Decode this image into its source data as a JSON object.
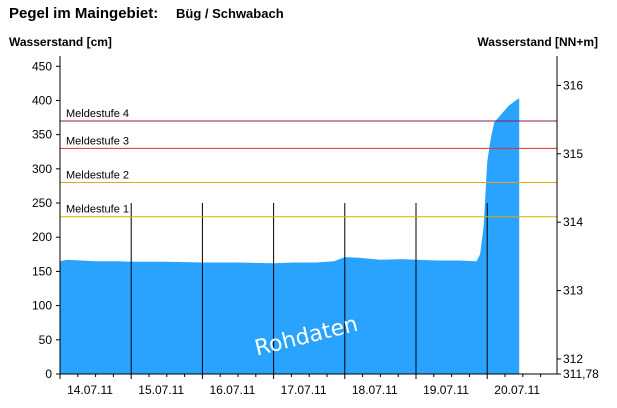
{
  "header": {
    "prefix": "Pegel im Maingebiet:",
    "station": "Büg / Schwabach"
  },
  "chart_data": {
    "type": "area",
    "ylabel_left": "Wasserstand [cm]",
    "ylabel_right": "Wasserstand [NN+m]",
    "watermark": "Rohdaten",
    "ylim": [
      0,
      465
    ],
    "yticks_left": [
      "0",
      "50",
      "100",
      "150",
      "200",
      "250",
      "300",
      "350",
      "400",
      "450"
    ],
    "right_axis": {
      "ticks": [
        "311,78",
        "312",
        "313",
        "314",
        "315",
        "316"
      ],
      "ticks_num": [
        311.78,
        312,
        313,
        314,
        315,
        316
      ],
      "offset_m": 311.78
    },
    "xticks": [
      "14.07.11",
      "15.07.11",
      "16.07.11",
      "17.07.11",
      "18.07.11",
      "19.07.11",
      "20.07.11"
    ],
    "series": [
      {
        "x": [
          0,
          0.1,
          0.3,
          0.5,
          0.8,
          1.0,
          1.5,
          2.0,
          2.5,
          3.0,
          3.3,
          3.6,
          3.85,
          4.0,
          4.2,
          4.5,
          4.8,
          5.0,
          5.3,
          5.6,
          5.85,
          5.9,
          5.95,
          6.0,
          6.05,
          6.1,
          6.2,
          6.3,
          6.4,
          6.45
        ],
        "values": [
          165,
          167,
          166,
          165,
          165,
          164,
          164,
          163,
          163,
          162,
          163,
          163,
          165,
          171,
          170,
          167,
          168,
          167,
          166,
          166,
          165,
          175,
          215,
          310,
          345,
          368,
          380,
          392,
          400,
          403
        ]
      }
    ],
    "thresholds": [
      {
        "label": "Meldestufe 4",
        "value": 370,
        "color": "#8b1a5a"
      },
      {
        "label": "Meldestufe 3",
        "value": 330,
        "color": "#e03030"
      },
      {
        "label": "Meldestufe 2",
        "value": 280,
        "color": "#f0a020"
      },
      {
        "label": "Meldestufe 1",
        "value": 230,
        "color": "#d4b000"
      }
    ],
    "fill_color": "#29a3ff"
  }
}
